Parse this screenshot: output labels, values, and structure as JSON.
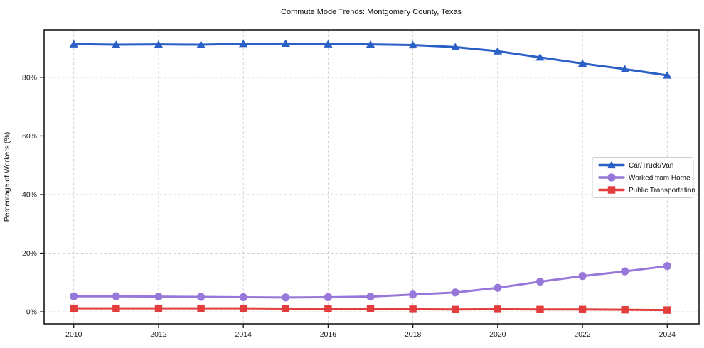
{
  "chart_data": {
    "type": "line",
    "title": "Commute Mode Trends: Montgomery County, Texas",
    "xlabel": "",
    "ylabel": "Percentage of Workers (%)",
    "x": [
      2010,
      2011,
      2012,
      2013,
      2014,
      2015,
      2016,
      2017,
      2018,
      2019,
      2020,
      2021,
      2022,
      2023,
      2024
    ],
    "series": [
      {
        "name": "Car/Truck/Van",
        "color": "#2a5fc6",
        "marker": "triangle",
        "values": [
          91.3,
          91.1,
          91.2,
          91.1,
          91.4,
          91.5,
          91.3,
          91.2,
          91.0,
          90.3,
          88.9,
          86.8,
          84.7,
          82.8,
          80.7
        ]
      },
      {
        "name": "Worked from Home",
        "color": "#9777d9",
        "marker": "circle",
        "values": [
          5.3,
          5.3,
          5.2,
          5.1,
          5.0,
          4.9,
          5.0,
          5.2,
          5.9,
          6.6,
          8.2,
          10.3,
          12.2,
          13.8,
          15.6
        ]
      },
      {
        "name": "Public Transportation",
        "color": "#e23c3c",
        "marker": "square",
        "values": [
          1.2,
          1.2,
          1.2,
          1.2,
          1.2,
          1.1,
          1.1,
          1.1,
          0.9,
          0.8,
          0.9,
          0.8,
          0.8,
          0.7,
          0.6
        ]
      }
    ],
    "xticks": [
      2010,
      2012,
      2014,
      2016,
      2018,
      2020,
      2022,
      2024
    ],
    "xtick_labels": [
      "2010",
      "2012",
      "2014",
      "2016",
      "2018",
      "2020",
      "2022",
      "2024"
    ],
    "yticks": [
      0,
      20,
      40,
      60,
      80
    ],
    "ytick_labels": [
      "0%",
      "20%",
      "40%",
      "60%",
      "80%"
    ],
    "xlim": [
      2009.3,
      2024.75
    ],
    "ylim": [
      -4.1,
      96.2
    ],
    "grid": true,
    "legend_position": "center right"
  },
  "style": {
    "grid_color": "#cccccc",
    "frame_color": "#1a1a1a",
    "legend_border_color": "#cccccc",
    "legend_bg_color": "#ffffff",
    "background_color": "#ffffff"
  }
}
